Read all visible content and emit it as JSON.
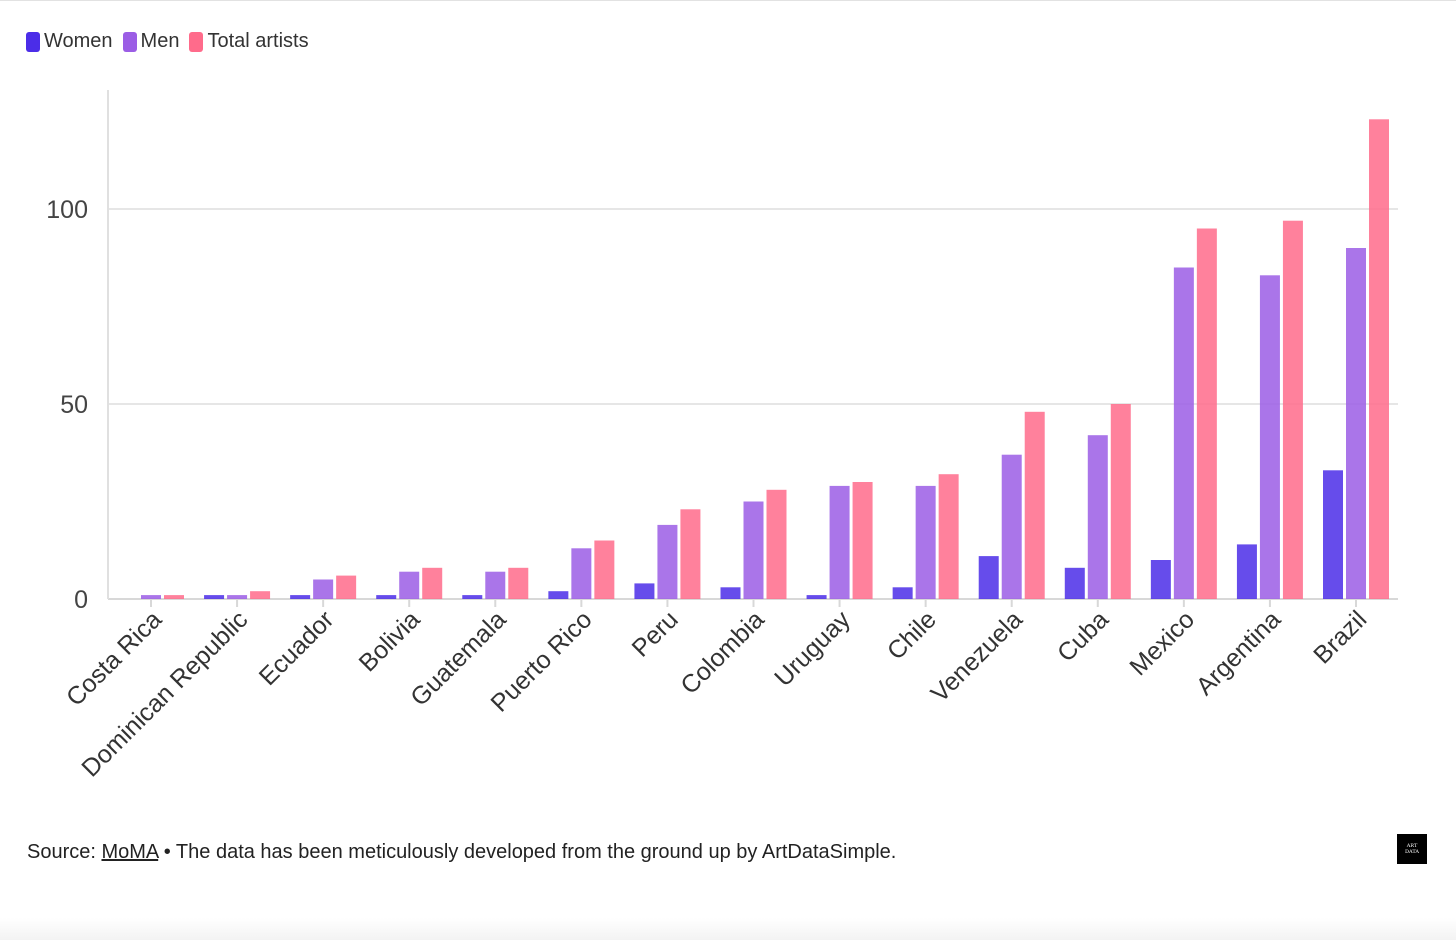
{
  "legend": {
    "items": [
      {
        "label": "Women",
        "color": "#4b2de8"
      },
      {
        "label": "Men",
        "color": "#9b5de5"
      },
      {
        "label": "Total artists",
        "color": "#ff6b8b"
      }
    ]
  },
  "chart_data": {
    "type": "bar",
    "title": "",
    "xlabel": "",
    "ylabel": "",
    "ylim": [
      0,
      125
    ],
    "yticks": [
      0,
      50,
      100
    ],
    "grid": true,
    "legend_position": "top-left",
    "categories": [
      "Costa Rica",
      "Dominican Republic",
      "Ecuador",
      "Bolivia",
      "Guatemala",
      "Puerto Rico",
      "Peru",
      "Colombia",
      "Uruguay",
      "Chile",
      "Venezuela",
      "Cuba",
      "Mexico",
      "Argentina",
      "Brazil"
    ],
    "series": [
      {
        "name": "Women",
        "color": "#4b2de8",
        "values": [
          0,
          1,
          1,
          1,
          1,
          2,
          4,
          3,
          1,
          3,
          11,
          8,
          10,
          14,
          33
        ]
      },
      {
        "name": "Men",
        "color": "#9b5de5",
        "values": [
          1,
          1,
          5,
          7,
          7,
          13,
          19,
          25,
          29,
          29,
          37,
          42,
          85,
          83,
          90
        ]
      },
      {
        "name": "Total artists",
        "color": "#ff6b8b",
        "values": [
          1,
          2,
          6,
          8,
          8,
          15,
          23,
          28,
          30,
          32,
          48,
          50,
          95,
          97,
          123
        ]
      }
    ]
  },
  "footer": {
    "source_prefix": "Source: ",
    "source_link": "MoMA",
    "source_rest": " • The data has been meticulously developed from the ground up by ArtDataSimple."
  },
  "logo": {
    "line1": "ART",
    "line2": "DATA"
  }
}
